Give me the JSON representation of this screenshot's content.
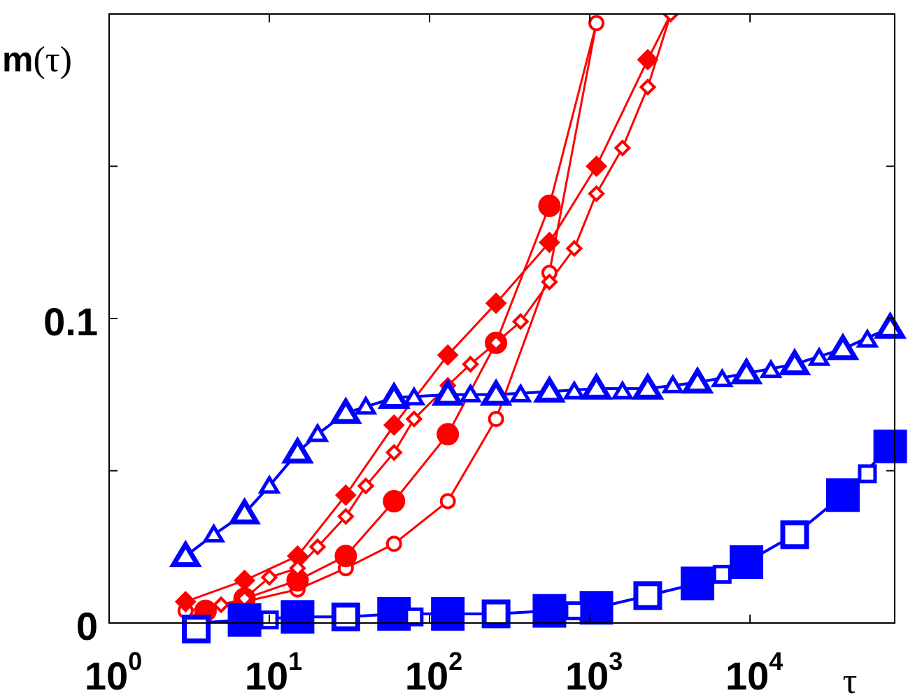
{
  "chart_data": {
    "type": "scatter",
    "title": "",
    "xlabel": "τ",
    "ylabel_prefix": "m",
    "ylabel_suffix": "(τ)",
    "x_scale": "log",
    "xlim": [
      1,
      80000
    ],
    "ylim": [
      0,
      0.2
    ],
    "grid": false,
    "legend": "none",
    "x_ticks": [
      {
        "base": "10",
        "exp": "0",
        "value": 1
      },
      {
        "base": "10",
        "exp": "1",
        "value": 10
      },
      {
        "base": "10",
        "exp": "2",
        "value": 100
      },
      {
        "base": "10",
        "exp": "3",
        "value": 1000
      },
      {
        "base": "10",
        "exp": "4",
        "value": 10000
      }
    ],
    "x_minor_ticks": [
      100000
    ],
    "y_ticks": [
      {
        "label": "0",
        "value": 0
      },
      {
        "label": "0.1",
        "value": 0.1
      }
    ],
    "y_minor_ticks": [
      0.05,
      0.15
    ],
    "series": [
      {
        "color": "#ff0000",
        "marker": "circle",
        "filled": false,
        "marker_size": 19,
        "points": [
          [
            3,
            0.004
          ],
          [
            7,
            0.007
          ],
          [
            15,
            0.011
          ],
          [
            30,
            0.018
          ],
          [
            60,
            0.026
          ],
          [
            130,
            0.04
          ],
          [
            260,
            0.067
          ],
          [
            560,
            0.115
          ],
          [
            1100,
            0.197
          ]
        ]
      },
      {
        "color": "#ff0000",
        "marker": "circle",
        "filled": true,
        "marker_size": 30,
        "points": [
          [
            4,
            0.004
          ],
          [
            7,
            0.008
          ],
          [
            15,
            0.014
          ],
          [
            30,
            0.022
          ],
          [
            60,
            0.04
          ],
          [
            130,
            0.062
          ],
          [
            260,
            0.092
          ],
          [
            560,
            0.137
          ]
        ]
      },
      {
        "color": "#ff0000",
        "marker": "diamond",
        "filled": true,
        "marker_size": 28,
        "points": [
          [
            3,
            0.007
          ],
          [
            7,
            0.014
          ],
          [
            15,
            0.022
          ],
          [
            30,
            0.042
          ],
          [
            60,
            0.065
          ],
          [
            130,
            0.088
          ],
          [
            260,
            0.105
          ],
          [
            560,
            0.125
          ],
          [
            1100,
            0.15
          ],
          [
            2300,
            0.185
          ]
        ]
      },
      {
        "color": "#ff0000",
        "marker": "diamond",
        "filled": false,
        "marker_size": 19,
        "points": [
          [
            3.5,
            0.001
          ],
          [
            5,
            0.006
          ],
          [
            7,
            0.008
          ],
          [
            10,
            0.015
          ],
          [
            15,
            0.018
          ],
          [
            20,
            0.025
          ],
          [
            30,
            0.035
          ],
          [
            40,
            0.045
          ],
          [
            60,
            0.056
          ],
          [
            80,
            0.067
          ],
          [
            130,
            0.078
          ],
          [
            180,
            0.085
          ],
          [
            260,
            0.092
          ],
          [
            370,
            0.099
          ],
          [
            560,
            0.112
          ],
          [
            800,
            0.123
          ],
          [
            1100,
            0.141
          ],
          [
            1600,
            0.156
          ],
          [
            2300,
            0.176
          ],
          [
            3200,
            0.2
          ]
        ]
      },
      {
        "color": "#0000ff",
        "marker": "triangle",
        "filled": false,
        "marker_size": 30,
        "stroke_width": 7,
        "points": [
          [
            3,
            0.022
          ],
          [
            7,
            0.036
          ],
          [
            15,
            0.056
          ],
          [
            30,
            0.069
          ],
          [
            60,
            0.074
          ],
          [
            130,
            0.075
          ],
          [
            260,
            0.075
          ],
          [
            560,
            0.076
          ],
          [
            1100,
            0.077
          ],
          [
            2300,
            0.077
          ],
          [
            4700,
            0.079
          ],
          [
            9500,
            0.082
          ],
          [
            19000,
            0.085
          ],
          [
            38000,
            0.09
          ],
          [
            75000,
            0.097
          ]
        ]
      },
      {
        "color": "#0000ff",
        "marker": "triangle",
        "filled": false,
        "marker_size": 21,
        "stroke_width": 5,
        "points": [
          [
            4.5,
            0.029
          ],
          [
            10,
            0.045
          ],
          [
            20,
            0.062
          ],
          [
            40,
            0.071
          ],
          [
            80,
            0.074
          ],
          [
            180,
            0.075
          ],
          [
            370,
            0.075
          ],
          [
            800,
            0.076
          ],
          [
            1600,
            0.076
          ],
          [
            3300,
            0.078
          ],
          [
            6700,
            0.08
          ],
          [
            13500,
            0.083
          ],
          [
            27000,
            0.087
          ],
          [
            54000,
            0.093
          ]
        ]
      },
      {
        "color": "#0000ff",
        "marker": "square",
        "filled": true,
        "marker_size": 46,
        "points": [
          [
            7,
            0.001
          ],
          [
            15,
            0.002
          ],
          [
            60,
            0.003
          ],
          [
            130,
            0.003
          ],
          [
            560,
            0.004
          ],
          [
            1100,
            0.005
          ],
          [
            4700,
            0.013
          ],
          [
            9500,
            0.02
          ],
          [
            38000,
            0.042
          ],
          [
            75000,
            0.058
          ]
        ]
      },
      {
        "color": "#0000ff",
        "marker": "square",
        "filled": false,
        "marker_size": 34,
        "stroke_width": 7,
        "points": [
          [
            3.5,
            -0.002
          ],
          [
            30,
            0.002
          ],
          [
            260,
            0.003
          ],
          [
            2300,
            0.009
          ],
          [
            19000,
            0.029
          ]
        ]
      },
      {
        "color": "#0000ff",
        "marker": "square",
        "filled": false,
        "marker_size": 22,
        "stroke_width": 5,
        "points": [
          [
            10,
            0.001
          ],
          [
            80,
            0.002
          ],
          [
            800,
            0.004
          ],
          [
            6700,
            0.016
          ],
          [
            54000,
            0.049
          ]
        ]
      }
    ],
    "lines": [
      {
        "color": "#ff0000",
        "stroke_width": 3,
        "points": [
          [
            3,
            0.004
          ],
          [
            7,
            0.007
          ],
          [
            15,
            0.011
          ],
          [
            30,
            0.018
          ],
          [
            60,
            0.026
          ],
          [
            130,
            0.04
          ],
          [
            260,
            0.067
          ],
          [
            560,
            0.115
          ],
          [
            1100,
            0.197
          ]
        ]
      },
      {
        "color": "#ff0000",
        "stroke_width": 3,
        "points": [
          [
            4,
            0.004
          ],
          [
            7,
            0.008
          ],
          [
            15,
            0.014
          ],
          [
            30,
            0.022
          ],
          [
            60,
            0.04
          ],
          [
            130,
            0.062
          ],
          [
            260,
            0.092
          ],
          [
            560,
            0.137
          ],
          [
            1100,
            0.197
          ]
        ]
      },
      {
        "color": "#ff0000",
        "stroke_width": 3,
        "points": [
          [
            3,
            0.007
          ],
          [
            7,
            0.014
          ],
          [
            15,
            0.022
          ],
          [
            30,
            0.042
          ],
          [
            60,
            0.065
          ],
          [
            130,
            0.088
          ],
          [
            260,
            0.105
          ],
          [
            560,
            0.125
          ],
          [
            1100,
            0.15
          ],
          [
            2300,
            0.185
          ],
          [
            3200,
            0.2
          ]
        ]
      },
      {
        "color": "#ff0000",
        "stroke_width": 3,
        "points": [
          [
            3.5,
            0.001
          ],
          [
            5,
            0.006
          ],
          [
            7,
            0.008
          ],
          [
            10,
            0.015
          ],
          [
            15,
            0.018
          ],
          [
            20,
            0.025
          ],
          [
            30,
            0.035
          ],
          [
            40,
            0.045
          ],
          [
            60,
            0.056
          ],
          [
            80,
            0.067
          ],
          [
            130,
            0.078
          ],
          [
            180,
            0.085
          ],
          [
            260,
            0.092
          ],
          [
            370,
            0.099
          ],
          [
            560,
            0.112
          ],
          [
            800,
            0.123
          ],
          [
            1100,
            0.141
          ],
          [
            1600,
            0.156
          ],
          [
            2300,
            0.176
          ],
          [
            3200,
            0.2
          ]
        ]
      },
      {
        "color": "#0000ff",
        "stroke_width": 4,
        "points": [
          [
            3,
            0.022
          ],
          [
            4.5,
            0.029
          ],
          [
            7,
            0.036
          ],
          [
            10,
            0.045
          ],
          [
            15,
            0.056
          ],
          [
            20,
            0.062
          ],
          [
            30,
            0.069
          ],
          [
            40,
            0.071
          ],
          [
            60,
            0.074
          ],
          [
            130,
            0.075
          ],
          [
            260,
            0.075
          ],
          [
            560,
            0.076
          ],
          [
            1100,
            0.077
          ],
          [
            2300,
            0.077
          ],
          [
            4700,
            0.079
          ],
          [
            9500,
            0.082
          ],
          [
            19000,
            0.085
          ],
          [
            38000,
            0.09
          ],
          [
            75000,
            0.097
          ]
        ]
      },
      {
        "color": "#0000ff",
        "stroke_width": 4,
        "points": [
          [
            3.5,
            0.0
          ],
          [
            7,
            0.001
          ],
          [
            15,
            0.002
          ],
          [
            30,
            0.002
          ],
          [
            60,
            0.003
          ],
          [
            130,
            0.003
          ],
          [
            260,
            0.003
          ],
          [
            560,
            0.004
          ],
          [
            1100,
            0.005
          ],
          [
            2300,
            0.009
          ],
          [
            4700,
            0.013
          ],
          [
            9500,
            0.02
          ],
          [
            19000,
            0.029
          ],
          [
            38000,
            0.042
          ],
          [
            75000,
            0.058
          ]
        ]
      }
    ]
  }
}
